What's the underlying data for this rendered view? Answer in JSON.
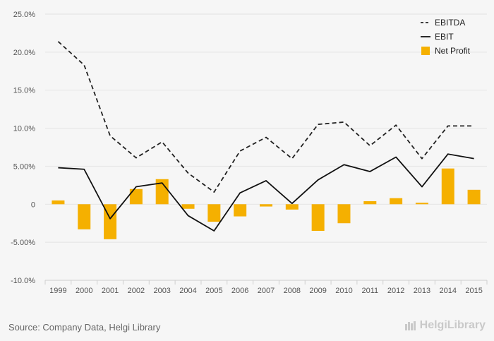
{
  "chart_data": {
    "type": "bar+line",
    "categories": [
      "1999",
      "2000",
      "2001",
      "2002",
      "2003",
      "2004",
      "2005",
      "2006",
      "2007",
      "2008",
      "2009",
      "2010",
      "2011",
      "2012",
      "2013",
      "2014",
      "2015"
    ],
    "ylim": [
      -10,
      25
    ],
    "yticks": [
      "25.0%",
      "20.0%",
      "15.0%",
      "10.0%",
      "5.00%",
      "0",
      "-5.00%",
      "-10.0%"
    ],
    "ytick_values": [
      25,
      20,
      15,
      10,
      5,
      0,
      -5,
      -10
    ],
    "grid": true,
    "legend_position": "top-right",
    "series": [
      {
        "name": "EBITDA",
        "kind": "line",
        "style": "dashed",
        "color": "#222222",
        "values": [
          21.4,
          18.3,
          9.0,
          6.1,
          8.2,
          4.1,
          1.6,
          7.0,
          8.8,
          6.0,
          10.5,
          10.8,
          7.7,
          10.4,
          6.0,
          10.3,
          10.3
        ]
      },
      {
        "name": "EBIT",
        "kind": "line",
        "style": "solid",
        "color": "#111111",
        "values": [
          4.8,
          4.6,
          -1.9,
          2.3,
          2.8,
          -1.5,
          -3.5,
          1.5,
          3.1,
          0.1,
          3.2,
          5.2,
          4.3,
          6.2,
          2.3,
          6.6,
          6.0
        ]
      },
      {
        "name": "Net Profit",
        "kind": "bar",
        "color": "#f5b000",
        "values": [
          0.5,
          -3.3,
          -4.6,
          2.0,
          3.3,
          -0.6,
          -2.3,
          -1.6,
          -0.3,
          -0.7,
          -3.5,
          -2.5,
          0.4,
          0.8,
          0.2,
          4.7,
          1.9
        ]
      }
    ]
  },
  "footer": {
    "source": "Source: Company Data, Helgi Library",
    "brand": "HelgiLibrary"
  }
}
